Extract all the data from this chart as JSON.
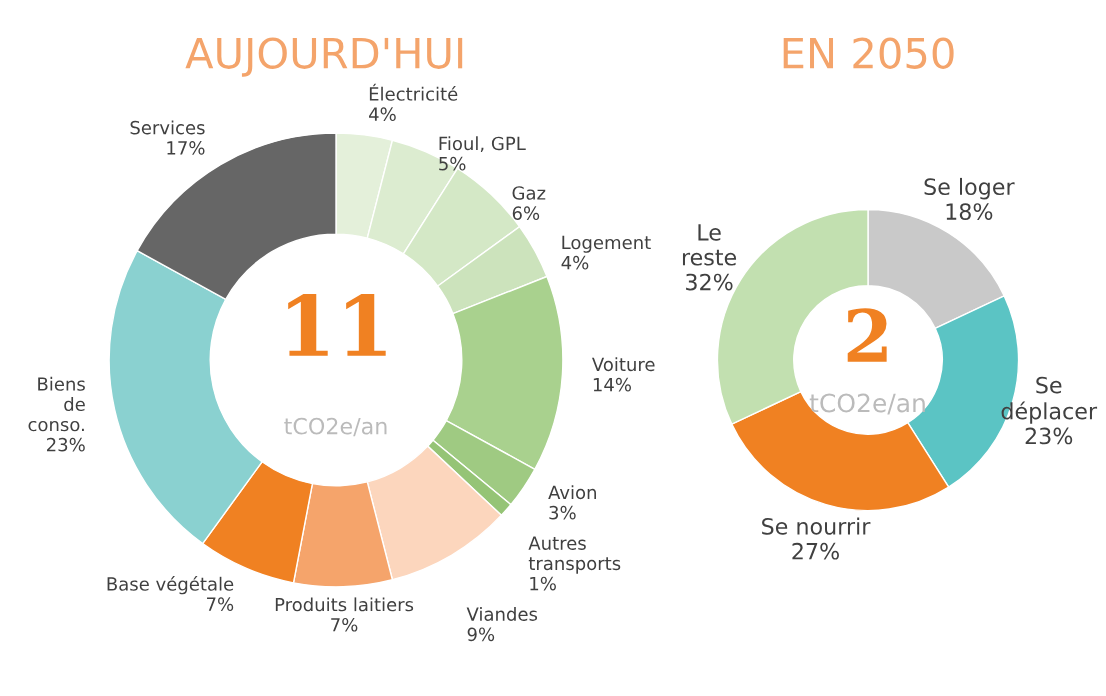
{
  "chart_data": [
    {
      "type": "donut",
      "title": "AUJOURD'HUI",
      "annotations": [
        "11",
        "tCO2e/an"
      ],
      "categories": [
        "Électricité",
        "Fioul, GPL",
        "Gaz",
        "Logement",
        "Voiture",
        "Avion",
        "Autres transports",
        "Viandes",
        "Produits laitiers",
        "Base végétale",
        "Biens de conso.",
        "Services"
      ],
      "values": [
        4,
        5,
        6,
        4,
        14,
        3,
        1,
        9,
        7,
        7,
        23,
        17
      ],
      "value_labels": [
        "4%",
        "5%",
        "6%",
        "4%",
        "14%",
        "3%",
        "1%",
        "9%",
        "7%",
        "7%",
        "23%",
        "17%"
      ],
      "colors": [
        "#e4f0da",
        "#dcecd0",
        "#d4e8c6",
        "#cce3bc",
        "#a9d18e",
        "#9fca82",
        "#95c476",
        "#fcd6bd",
        "#f5a46b",
        "#f08122",
        "#8ad1d0",
        "#666666"
      ]
    },
    {
      "type": "donut",
      "title": "EN 2050",
      "annotations": [
        "2",
        "tCO2e/an"
      ],
      "categories": [
        "Se loger",
        "Se déplacer",
        "Se nourrir",
        "Le reste"
      ],
      "values": [
        18,
        23,
        27,
        32
      ],
      "value_labels": [
        "18%",
        "23%",
        "27%",
        "32%"
      ],
      "colors": [
        "#c9c9c9",
        "#5bc4c4",
        "#f08122",
        "#c2e0b0"
      ]
    }
  ]
}
